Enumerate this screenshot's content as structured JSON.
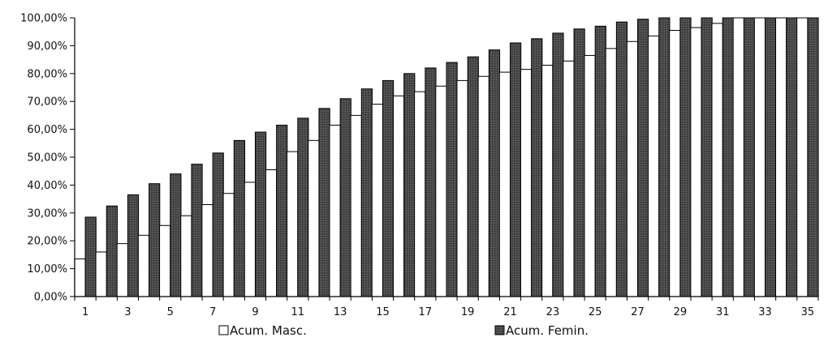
{
  "chart_data": {
    "type": "bar",
    "title": "",
    "xlabel": "",
    "ylabel": "",
    "ylim": [
      0,
      100
    ],
    "y_tick_step": 10,
    "y_tick_labels": [
      "0,00%",
      "10,00%",
      "20,00%",
      "30,00%",
      "40,00%",
      "50,00%",
      "60,00%",
      "70,00%",
      "80,00%",
      "90,00%",
      "100,00%"
    ],
    "categories": [
      1,
      2,
      3,
      4,
      5,
      6,
      7,
      8,
      9,
      10,
      11,
      12,
      13,
      14,
      15,
      16,
      17,
      18,
      19,
      20,
      21,
      22,
      23,
      24,
      25,
      26,
      27,
      28,
      29,
      30,
      31,
      32,
      33,
      34,
      35
    ],
    "x_tick_labels": [
      "1",
      "3",
      "5",
      "7",
      "9",
      "11",
      "13",
      "15",
      "17",
      "19",
      "21",
      "23",
      "25",
      "27",
      "29",
      "31",
      "33",
      "35"
    ],
    "grid": false,
    "legend_position": "bottom",
    "series": [
      {
        "name": "Acum. Masc.",
        "color": "#ffffff",
        "values": [
          13.5,
          16,
          19,
          22,
          25.5,
          29,
          33,
          37,
          41,
          45.5,
          52,
          56,
          61.5,
          65,
          69,
          72,
          73.5,
          75.5,
          77.5,
          79,
          80.5,
          81.5,
          83,
          84.5,
          86.5,
          89,
          91.5,
          93.5,
          95.5,
          96.5,
          98,
          100,
          100,
          100,
          100
        ]
      },
      {
        "name": "Acum. Femin.",
        "color": "#4a4a4a",
        "values": [
          28.5,
          32.5,
          36.5,
          40.5,
          44,
          47.5,
          51.5,
          56,
          59,
          61.5,
          64,
          67.5,
          71,
          74.5,
          77.5,
          80,
          82,
          84,
          86,
          88.5,
          91,
          92.5,
          94.5,
          96,
          97,
          98.5,
          99.5,
          100,
          100,
          100,
          100,
          100,
          100,
          100,
          100
        ]
      }
    ]
  }
}
